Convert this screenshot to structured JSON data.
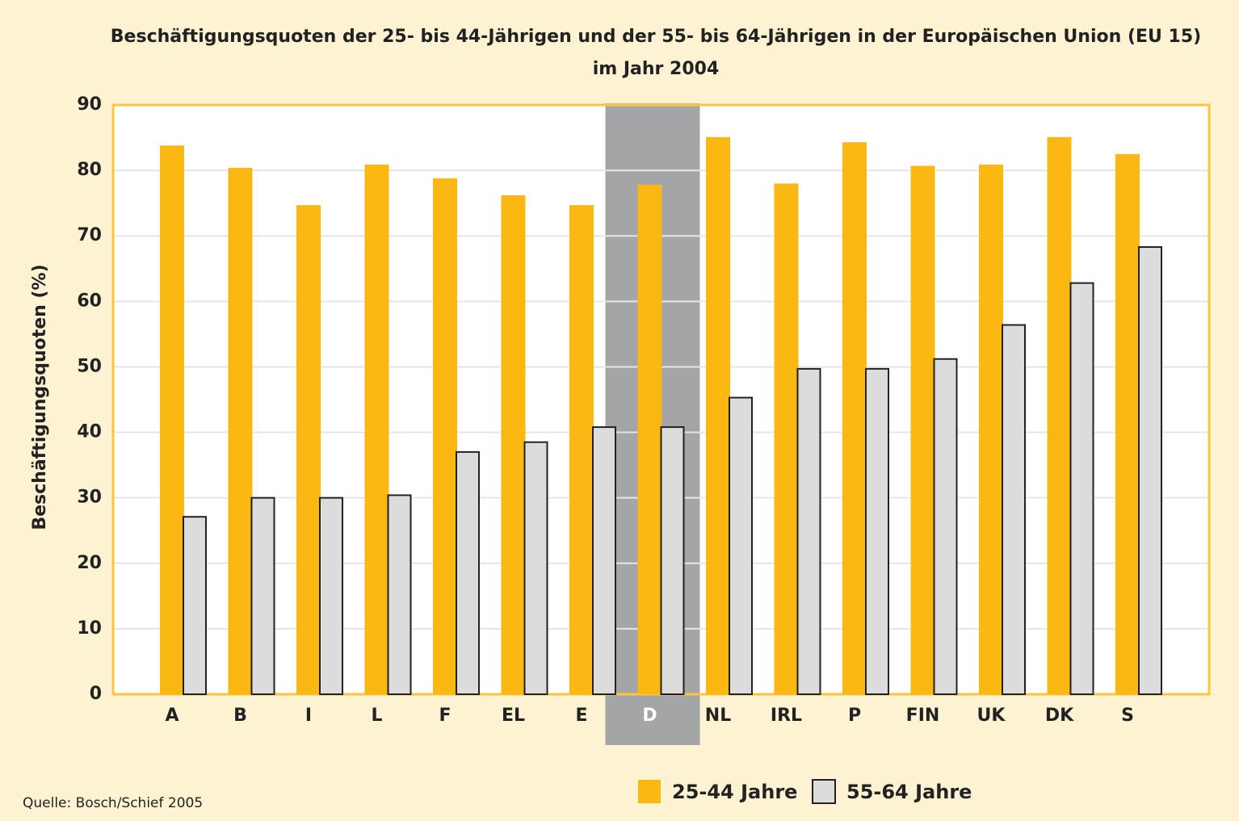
{
  "chart_data": {
    "type": "bar",
    "title": [
      "Beschäftigungsquoten der 25- bis 44-Jährigen und der 55- bis 64-Jährigen in der Europäischen Union (EU 15)",
      "im Jahr 2004"
    ],
    "y_label": "Beschäftigungsquoten (%)",
    "source": "Quelle: Bosch/Schief 2005",
    "categories": [
      "A",
      "B",
      "I",
      "L",
      "F",
      "EL",
      "E",
      "D",
      "NL",
      "IRL",
      "P",
      "FIN",
      "UK",
      "DK",
      "S"
    ],
    "highlight": "D",
    "series": [
      {
        "name": "25-44 Jahre",
        "color": "#fbb813",
        "values": [
          83.8,
          80.4,
          74.7,
          80.9,
          78.8,
          76.2,
          74.7,
          77.8,
          85.1,
          78.0,
          84.3,
          80.7,
          80.9,
          85.1,
          82.5
        ]
      },
      {
        "name": "55-64 Jahre",
        "color": "#dcdcdc",
        "values": [
          27.1,
          30.0,
          30.0,
          30.4,
          37.0,
          38.5,
          40.8,
          40.8,
          45.3,
          49.7,
          49.7,
          51.2,
          56.4,
          62.8,
          68.3
        ]
      }
    ],
    "ylim": [
      0,
      90
    ],
    "yticks": [
      0,
      10,
      20,
      30,
      40,
      50,
      60,
      70,
      80,
      90
    ],
    "grid": true
  }
}
